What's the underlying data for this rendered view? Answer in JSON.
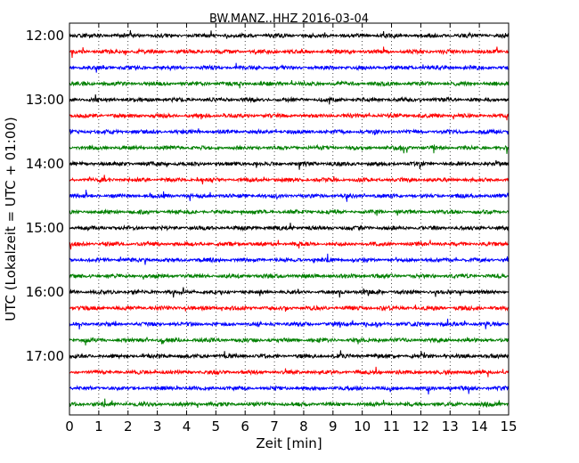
{
  "chart_data": {
    "type": "line",
    "title": "BW.MANZ..HHZ 2016-03-04",
    "xlabel": "Zeit  [min]",
    "ylabel": "UTC (Lokalzeit = UTC + 01:00)",
    "xlim": [
      0,
      15
    ],
    "x_ticks": [
      "0",
      "1",
      "2",
      "3",
      "4",
      "5",
      "6",
      "7",
      "8",
      "9",
      "10",
      "11",
      "12",
      "13",
      "14",
      "15"
    ],
    "y_ticks": [
      "12:00",
      "13:00",
      "14:00",
      "15:00",
      "16:00",
      "17:00"
    ],
    "grid": "vertical-dotted",
    "trace_colors": [
      "#000000",
      "#ff0000",
      "#0000ff",
      "#007f00"
    ],
    "series": [
      {
        "start": "12:00"
      },
      {
        "start": "12:15"
      },
      {
        "start": "12:30"
      },
      {
        "start": "12:45"
      },
      {
        "start": "13:00"
      },
      {
        "start": "13:15"
      },
      {
        "start": "13:30"
      },
      {
        "start": "13:45"
      },
      {
        "start": "14:00"
      },
      {
        "start": "14:15"
      },
      {
        "start": "14:30"
      },
      {
        "start": "14:45"
      },
      {
        "start": "15:00"
      },
      {
        "start": "15:15"
      },
      {
        "start": "15:30"
      },
      {
        "start": "15:45"
      },
      {
        "start": "16:00"
      },
      {
        "start": "16:15"
      },
      {
        "start": "16:30"
      },
      {
        "start": "16:45"
      },
      {
        "start": "17:00"
      },
      {
        "start": "17:15"
      },
      {
        "start": "17:30"
      },
      {
        "start": "17:45"
      }
    ]
  }
}
